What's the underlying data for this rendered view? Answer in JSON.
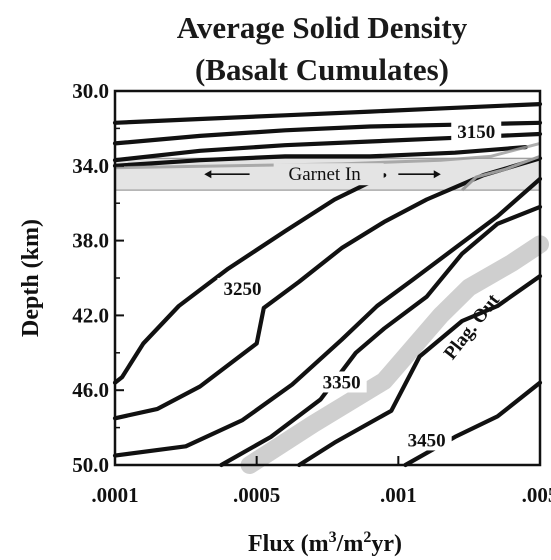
{
  "chart_data": {
    "type": "line",
    "title_line1": "Average Solid Density",
    "title_line2": "(Basalt Cumulates)",
    "xlabel": "Flux (m",
    "xlabel_sup1": "3",
    "xlabel_mid": "/m",
    "xlabel_sup2": "2",
    "xlabel_end": "yr)",
    "ylabel": "Depth (km)",
    "x_ticks": [
      ".0001",
      ".0005",
      ".001",
      ".005"
    ],
    "y_ticks": [
      "30.0",
      "34.0",
      "38.0",
      "42.0",
      "46.0",
      "50.0"
    ],
    "ylim": [
      30,
      50
    ],
    "y_inverted": true,
    "garnet_band": {
      "label": "Garnet In",
      "depth_top": 33.6,
      "depth_bottom": 35.3
    },
    "plag_out": {
      "label": "Plag. Out",
      "x": [
        0.95,
        1.4,
        1.9,
        2.3,
        2.5,
        2.8,
        3.0
      ],
      "y": [
        50.0,
        47.8,
        45.5,
        42.0,
        40.5,
        39.2,
        38.2
      ]
    },
    "series": [
      {
        "name": "",
        "x": [
          0,
          0.6,
          1.2,
          1.8,
          2.4,
          3.0
        ],
        "y": [
          31.7,
          31.5,
          31.3,
          31.1,
          30.9,
          30.7
        ]
      },
      {
        "name": "",
        "x": [
          0,
          0.6,
          1.2,
          1.8,
          2.4,
          3.0
        ],
        "y": [
          32.8,
          32.4,
          32.1,
          31.9,
          31.8,
          31.7
        ]
      },
      {
        "name": "",
        "x": [
          0,
          0.6,
          1.2,
          1.8,
          2.4,
          3.0
        ],
        "y": [
          33.7,
          33.2,
          32.9,
          32.7,
          32.5,
          32.3
        ]
      },
      {
        "name": "",
        "x": [
          0,
          0.6,
          1.2,
          1.8,
          2.4,
          2.9
        ],
        "y": [
          34.0,
          33.7,
          33.5,
          33.5,
          33.3,
          33.0
        ]
      },
      {
        "name": "",
        "x": [
          0,
          0.05,
          0.2,
          0.45,
          0.8,
          1.2,
          1.55,
          1.9
        ],
        "y": [
          45.6,
          45.3,
          43.5,
          41.5,
          39.5,
          37.5,
          35.8,
          34.5
        ]
      },
      {
        "name": "",
        "x": [
          0,
          0.3,
          0.6,
          1.0,
          1.05,
          1.3,
          1.6,
          1.9,
          2.2,
          2.6,
          3.0
        ],
        "y": [
          47.5,
          47.0,
          45.8,
          43.5,
          41.6,
          40.2,
          38.4,
          37.0,
          35.8,
          34.5,
          33.6
        ]
      },
      {
        "name": "",
        "x": [
          0,
          0.5,
          0.9,
          1.25,
          1.6,
          1.85,
          2.1,
          2.4,
          2.7,
          3.0
        ],
        "y": [
          49.5,
          49.0,
          47.6,
          45.7,
          43.3,
          41.5,
          40.1,
          38.4,
          36.7,
          34.7
        ]
      },
      {
        "name": "",
        "x": [
          0.75,
          1.1,
          1.45,
          1.7,
          1.9,
          2.2,
          2.45,
          2.7,
          3.0
        ],
        "y": [
          50.0,
          48.5,
          46.5,
          44.0,
          42.7,
          41.0,
          38.7,
          37.1,
          36.2
        ]
      },
      {
        "name": "",
        "x": [
          1.3,
          1.55,
          1.95,
          2.15,
          2.45,
          2.7,
          3.0
        ],
        "y": [
          50.0,
          48.8,
          47.1,
          44.2,
          42.3,
          41.5,
          39.9
        ]
      },
      {
        "name": "",
        "x": [
          2.05,
          2.4,
          2.7,
          3.0
        ],
        "y": [
          50.0,
          48.5,
          47.4,
          45.6
        ]
      }
    ],
    "contour_labels": [
      {
        "text": "3150",
        "x": 2.55,
        "y": 32.4
      },
      {
        "text": "3250",
        "x": 0.9,
        "y": 40.8
      },
      {
        "text": "3350",
        "x": 1.6,
        "y": 45.8
      },
      {
        "text": "3450",
        "x": 2.2,
        "y": 48.9
      }
    ],
    "grid": false
  }
}
